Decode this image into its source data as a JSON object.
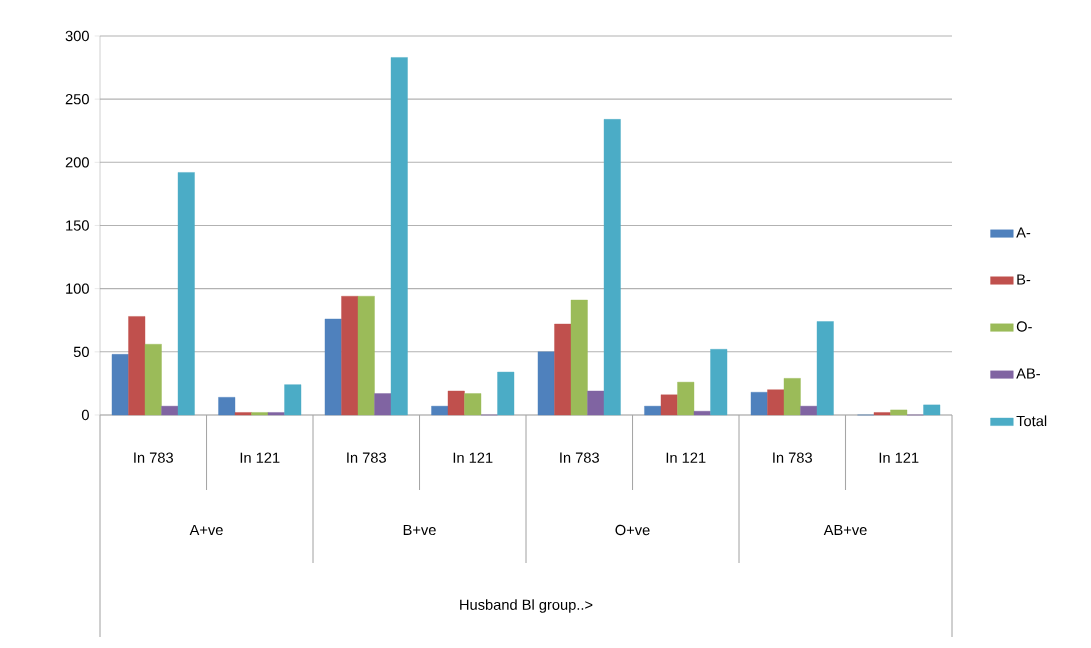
{
  "chart_data": {
    "type": "bar",
    "categories": [
      "In 783",
      "In 121",
      "In 783",
      "In 121",
      "In 783",
      "In 121",
      "In 783",
      "In 121"
    ],
    "annotations": [
      "A+ve",
      "B+ve",
      "O+ve",
      "AB+ve",
      "Husband Bl group..>"
    ],
    "series": [
      {
        "name": "A-",
        "color": "#4f81bd",
        "values": [
          48,
          14,
          76,
          7,
          50,
          7,
          18,
          0
        ]
      },
      {
        "name": "B-",
        "color": "#c0504d",
        "values": [
          78,
          2,
          94,
          19,
          72,
          16,
          20,
          2
        ]
      },
      {
        "name": "O-",
        "color": "#9bbb59",
        "values": [
          56,
          2,
          94,
          17,
          91,
          26,
          29,
          4
        ]
      },
      {
        "name": "AB-",
        "color": "#8064a2",
        "values": [
          7,
          2,
          17,
          0,
          19,
          3,
          7,
          0
        ]
      },
      {
        "name": "Total",
        "color": "#4bacc6",
        "values": [
          192,
          24,
          283,
          34,
          234,
          52,
          74,
          8
        ]
      }
    ],
    "ylim": [
      0,
      300
    ],
    "yticks": [
      0,
      50,
      100,
      150,
      200,
      250,
      300
    ],
    "grid": "y",
    "legend": "right"
  }
}
